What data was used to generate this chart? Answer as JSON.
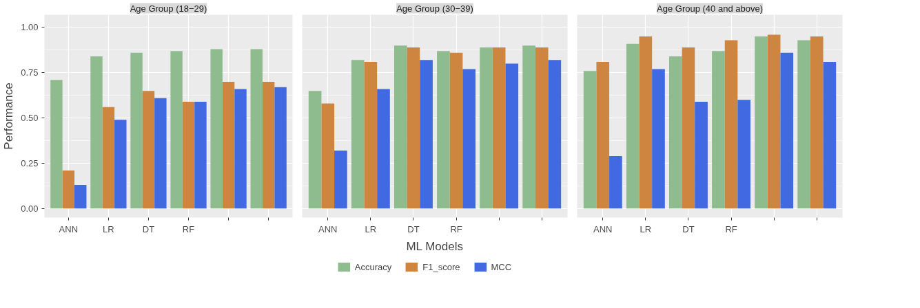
{
  "chart_data": [
    {
      "type": "bar",
      "title": "Age Group (18−29)",
      "ylabel": "Performance",
      "categories": [
        "ANN",
        "LR",
        "DT",
        "RF",
        null,
        null
      ],
      "series": [
        {
          "color": "#8fbc8f",
          "values": [
            0.71,
            0.84,
            0.86,
            0.87,
            0.88,
            0.88
          ]
        },
        {
          "color": "#cd853f",
          "values": [
            0.21,
            0.56,
            0.65,
            0.59,
            0.7,
            0.7
          ]
        },
        {
          "color": "#4169e1",
          "values": [
            0.13,
            0.49,
            0.61,
            0.59,
            0.66,
            0.67
          ]
        }
      ],
      "ylim": [
        -0.05,
        1.07
      ],
      "yticks": [
        {
          "value": 0,
          "label": "0.00"
        },
        {
          "value": 0.25,
          "label": "0.25"
        },
        {
          "value": 0.5,
          "label": "0.50"
        },
        {
          "value": 0.75,
          "label": "0.75"
        },
        {
          "value": 1,
          "label": "1.00"
        }
      ],
      "grid": true
    },
    {
      "type": "bar",
      "title": "Age Group (30−39)",
      "xlabel": "ML Models",
      "categories": [
        "ANN",
        "LR",
        "DT",
        "RF",
        null,
        null
      ],
      "series": [
        {
          "name": "Accuracy",
          "color": "#8fbc8f",
          "values": [
            0.65,
            0.82,
            0.9,
            0.87,
            0.89,
            0.9
          ]
        },
        {
          "name": "F1_score",
          "color": "#cd853f",
          "values": [
            0.58,
            0.81,
            0.89,
            0.86,
            0.89,
            0.89
          ]
        },
        {
          "name": "MCC",
          "color": "#4169e1",
          "values": [
            0.32,
            0.66,
            0.82,
            0.77,
            0.8,
            0.82
          ]
        }
      ],
      "ylim": [
        -0.05,
        1.07
      ],
      "yticks": [
        {
          "value": 0,
          "label": null
        },
        {
          "value": 0.25,
          "label": null
        },
        {
          "value": 0.5,
          "label": null
        },
        {
          "value": 0.75,
          "label": null
        },
        {
          "value": 1,
          "label": null
        }
      ],
      "grid": true,
      "tick_labels": "x",
      "legend": "bottom"
    },
    {
      "type": "bar",
      "title": "Age Group (40 and above)",
      "categories": [
        "ANN",
        "LR",
        "DT",
        "RF",
        null,
        null
      ],
      "series": [
        {
          "color": "#8fbc8f",
          "values": [
            0.76,
            0.91,
            0.84,
            0.87,
            0.95,
            0.93
          ]
        },
        {
          "color": "#cd853f",
          "values": [
            0.81,
            0.95,
            0.89,
            0.93,
            0.96,
            0.95
          ]
        },
        {
          "color": "#4169e1",
          "values": [
            0.29,
            0.77,
            0.59,
            0.6,
            0.86,
            0.81
          ]
        }
      ],
      "ylim": [
        -0.05,
        1.07
      ],
      "yticks": [
        {
          "value": 0,
          "label": null
        },
        {
          "value": 0.25,
          "label": null
        },
        {
          "value": 0.5,
          "label": null
        },
        {
          "value": 0.75,
          "label": null
        },
        {
          "value": 1,
          "label": null
        }
      ],
      "grid": true,
      "tick_labels": "x"
    }
  ]
}
